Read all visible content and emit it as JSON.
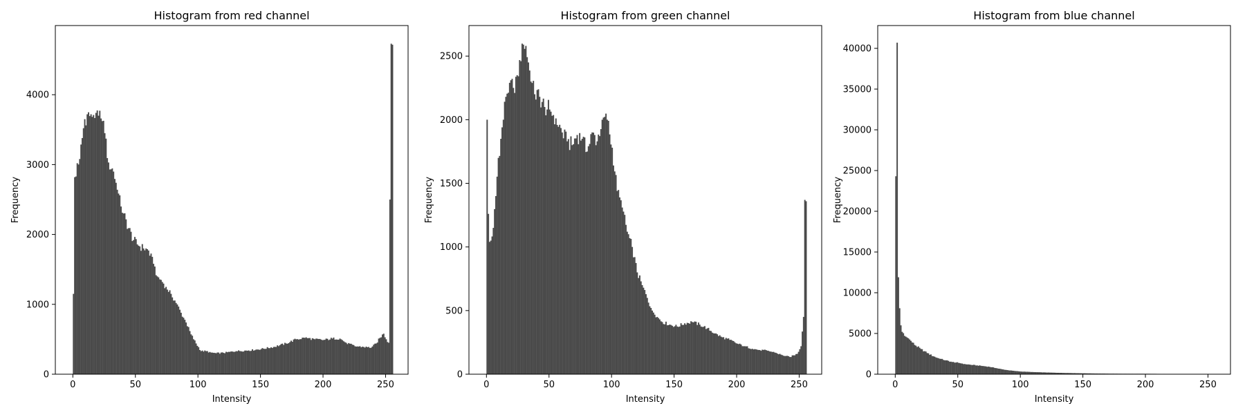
{
  "figure": {
    "bar_color": "#4a4a4a",
    "frame_color": "#000000",
    "background": "#ffffff"
  },
  "chart_data": [
    {
      "type": "bar",
      "title": "Histogram from red channel",
      "xlabel": "Intensity",
      "ylabel": "Frequency",
      "xlim": [
        -14,
        268
      ],
      "ylim": [
        0,
        4990
      ],
      "xticks": [
        0,
        50,
        100,
        150,
        200,
        250
      ],
      "yticks": [
        0,
        1000,
        2000,
        3000,
        4000
      ],
      "grid": false,
      "bin_width": 1,
      "keypoints": [
        [
          0,
          1150
        ],
        [
          1,
          2820
        ],
        [
          2,
          2830
        ],
        [
          3,
          3020
        ],
        [
          5,
          3080
        ],
        [
          7,
          3380
        ],
        [
          9,
          3650
        ],
        [
          11,
          3720
        ],
        [
          14,
          3720
        ],
        [
          18,
          3740
        ],
        [
          20,
          3700
        ],
        [
          22,
          3660
        ],
        [
          25,
          3450
        ],
        [
          28,
          3030
        ],
        [
          32,
          2900
        ],
        [
          35,
          2640
        ],
        [
          38,
          2400
        ],
        [
          40,
          2300
        ],
        [
          44,
          2090
        ],
        [
          48,
          1920
        ],
        [
          52,
          1840
        ],
        [
          56,
          1800
        ],
        [
          60,
          1770
        ],
        [
          64,
          1580
        ],
        [
          67,
          1400
        ],
        [
          70,
          1350
        ],
        [
          74,
          1250
        ],
        [
          78,
          1150
        ],
        [
          82,
          1020
        ],
        [
          86,
          880
        ],
        [
          90,
          740
        ],
        [
          94,
          570
        ],
        [
          98,
          440
        ],
        [
          102,
          330
        ],
        [
          106,
          330
        ],
        [
          110,
          310
        ],
        [
          114,
          300
        ],
        [
          120,
          305
        ],
        [
          130,
          330
        ],
        [
          140,
          340
        ],
        [
          150,
          360
        ],
        [
          160,
          390
        ],
        [
          170,
          440
        ],
        [
          178,
          500
        ],
        [
          185,
          520
        ],
        [
          193,
          500
        ],
        [
          200,
          490
        ],
        [
          207,
          510
        ],
        [
          213,
          510
        ],
        [
          218,
          450
        ],
        [
          225,
          400
        ],
        [
          232,
          390
        ],
        [
          238,
          380
        ],
        [
          242,
          440
        ],
        [
          245,
          520
        ],
        [
          248,
          580
        ],
        [
          250,
          500
        ],
        [
          252,
          450
        ],
        [
          253,
          2500
        ],
        [
          254,
          4730
        ]
      ]
    },
    {
      "type": "bar",
      "title": "Histogram from green channel",
      "xlabel": "Intensity",
      "ylabel": "Frequency",
      "xlim": [
        -14,
        268
      ],
      "ylim": [
        0,
        2740
      ],
      "xticks": [
        0,
        50,
        100,
        150,
        200,
        250
      ],
      "yticks": [
        0,
        500,
        1000,
        1500,
        2000,
        2500
      ],
      "grid": false,
      "bin_width": 1,
      "keypoints": [
        [
          0,
          2000
        ],
        [
          1,
          1260
        ],
        [
          2,
          1040
        ],
        [
          3,
          1050
        ],
        [
          5,
          1150
        ],
        [
          7,
          1400
        ],
        [
          9,
          1700
        ],
        [
          11,
          1850
        ],
        [
          13,
          2000
        ],
        [
          15,
          2180
        ],
        [
          18,
          2290
        ],
        [
          21,
          2250
        ],
        [
          24,
          2350
        ],
        [
          27,
          2460
        ],
        [
          29,
          2590
        ],
        [
          31,
          2580
        ],
        [
          33,
          2450
        ],
        [
          35,
          2300
        ],
        [
          38,
          2200
        ],
        [
          42,
          2180
        ],
        [
          46,
          2100
        ],
        [
          50,
          2080
        ],
        [
          55,
          2010
        ],
        [
          60,
          1900
        ],
        [
          64,
          1830
        ],
        [
          68,
          1800
        ],
        [
          72,
          1880
        ],
        [
          76,
          1850
        ],
        [
          80,
          1750
        ],
        [
          84,
          1900
        ],
        [
          88,
          1830
        ],
        [
          92,
          2000
        ],
        [
          96,
          2000
        ],
        [
          100,
          1780
        ],
        [
          104,
          1440
        ],
        [
          108,
          1310
        ],
        [
          112,
          1120
        ],
        [
          116,
          1000
        ],
        [
          120,
          800
        ],
        [
          124,
          700
        ],
        [
          128,
          600
        ],
        [
          132,
          500
        ],
        [
          136,
          450
        ],
        [
          140,
          410
        ],
        [
          146,
          390
        ],
        [
          152,
          375
        ],
        [
          158,
          400
        ],
        [
          164,
          410
        ],
        [
          170,
          390
        ],
        [
          176,
          360
        ],
        [
          182,
          320
        ],
        [
          188,
          290
        ],
        [
          194,
          270
        ],
        [
          200,
          240
        ],
        [
          206,
          220
        ],
        [
          212,
          200
        ],
        [
          218,
          190
        ],
        [
          224,
          185
        ],
        [
          230,
          170
        ],
        [
          236,
          150
        ],
        [
          242,
          135
        ],
        [
          248,
          160
        ],
        [
          251,
          220
        ],
        [
          253,
          450
        ],
        [
          254,
          1370
        ]
      ]
    },
    {
      "type": "bar",
      "title": "Histogram from blue channel",
      "xlabel": "Intensity",
      "ylabel": "Frequency",
      "xlim": [
        -14,
        268
      ],
      "ylim": [
        0,
        42800
      ],
      "xticks": [
        0,
        50,
        100,
        150,
        200,
        250
      ],
      "yticks": [
        0,
        5000,
        10000,
        15000,
        20000,
        25000,
        30000,
        35000,
        40000
      ],
      "grid": false,
      "bin_width": 1,
      "keypoints": [
        [
          0,
          24300
        ],
        [
          1,
          40700
        ],
        [
          2,
          11900
        ],
        [
          3,
          8100
        ],
        [
          4,
          6000
        ],
        [
          5,
          5200
        ],
        [
          7,
          4700
        ],
        [
          10,
          4400
        ],
        [
          13,
          3900
        ],
        [
          16,
          3500
        ],
        [
          20,
          3100
        ],
        [
          25,
          2600
        ],
        [
          30,
          2200
        ],
        [
          35,
          1900
        ],
        [
          40,
          1700
        ],
        [
          45,
          1500
        ],
        [
          50,
          1400
        ],
        [
          55,
          1250
        ],
        [
          60,
          1150
        ],
        [
          65,
          1080
        ],
        [
          70,
          1000
        ],
        [
          75,
          900
        ],
        [
          80,
          750
        ],
        [
          85,
          600
        ],
        [
          90,
          480
        ],
        [
          95,
          400
        ],
        [
          100,
          330
        ],
        [
          110,
          260
        ],
        [
          120,
          210
        ],
        [
          130,
          170
        ],
        [
          140,
          140
        ],
        [
          150,
          110
        ],
        [
          160,
          85
        ],
        [
          170,
          70
        ],
        [
          180,
          60
        ],
        [
          190,
          55
        ],
        [
          200,
          55
        ],
        [
          210,
          45
        ],
        [
          220,
          40
        ],
        [
          230,
          20
        ],
        [
          240,
          10
        ],
        [
          255,
          0
        ]
      ]
    }
  ]
}
